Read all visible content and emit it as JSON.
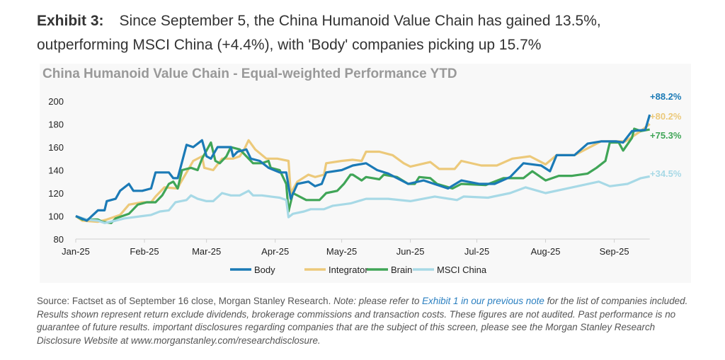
{
  "header": {
    "label": "Exhibit 3:",
    "line1": "Since September 5, the China Humanoid Value Chain has gained 13.5%,",
    "line2": "outperforming MSCI China (+4.4%), with 'Body' companies picking up 15.7%"
  },
  "chart_data": {
    "type": "line",
    "title": "China Humanoid Value Chain - Equal-weighted Performance YTD",
    "xlabel": "",
    "ylabel": "",
    "x_unit": "days since Jan 1 2025",
    "ylim": [
      80,
      200
    ],
    "yticks": [
      80,
      100,
      120,
      140,
      160,
      180,
      200
    ],
    "xticks": [
      {
        "label": "Jan-25",
        "day": 0
      },
      {
        "label": "Feb-25",
        "day": 31
      },
      {
        "label": "Mar-25",
        "day": 59
      },
      {
        "label": "Apr-25",
        "day": 90
      },
      {
        "label": "May-25",
        "day": 120
      },
      {
        "label": "Jun-25",
        "day": 151
      },
      {
        "label": "Jul-25",
        "day": 181
      },
      {
        "label": "Aug-25",
        "day": 212
      },
      {
        "label": "Sep-25",
        "day": 243
      }
    ],
    "xlim": [
      0,
      259
    ],
    "legend_position": "bottom",
    "series": [
      {
        "name": "Body",
        "color": "#1b7ab6",
        "end_label": "+88.2%",
        "points": [
          [
            0,
            100
          ],
          [
            5,
            96
          ],
          [
            10,
            105
          ],
          [
            13,
            105
          ],
          [
            14,
            113
          ],
          [
            18,
            115
          ],
          [
            20,
            122
          ],
          [
            24,
            128
          ],
          [
            26,
            122
          ],
          [
            30,
            122
          ],
          [
            34,
            124
          ],
          [
            36,
            138
          ],
          [
            42,
            138
          ],
          [
            44,
            133
          ],
          [
            46,
            133
          ],
          [
            50,
            162
          ],
          [
            53,
            160
          ],
          [
            57,
            166
          ],
          [
            59,
            152
          ],
          [
            61,
            150
          ],
          [
            64,
            160
          ],
          [
            70,
            160
          ],
          [
            71,
            152
          ],
          [
            73,
            156
          ],
          [
            77,
            158
          ],
          [
            79,
            150
          ],
          [
            83,
            148
          ],
          [
            87,
            142
          ],
          [
            92,
            138
          ],
          [
            95,
            138
          ],
          [
            97,
            115
          ],
          [
            100,
            128
          ],
          [
            105,
            130
          ],
          [
            108,
            126
          ],
          [
            111,
            128
          ],
          [
            113,
            138
          ],
          [
            120,
            140
          ],
          [
            125,
            144
          ],
          [
            131,
            146
          ],
          [
            136,
            140
          ],
          [
            141,
            137
          ],
          [
            150,
            128
          ],
          [
            157,
            131
          ],
          [
            168,
            124
          ],
          [
            174,
            131
          ],
          [
            182,
            128
          ],
          [
            189,
            128
          ],
          [
            196,
            134
          ],
          [
            202,
            146
          ],
          [
            210,
            144
          ],
          [
            214,
            139
          ],
          [
            217,
            153
          ],
          [
            225,
            153
          ],
          [
            231,
            163
          ],
          [
            237,
            165
          ],
          [
            244,
            165
          ],
          [
            247,
            164
          ],
          [
            251,
            174
          ],
          [
            257,
            175
          ],
          [
            259,
            188.2
          ]
        ]
      },
      {
        "name": "Integrator",
        "color": "#ecc97a",
        "end_label": "+80.2%",
        "points": [
          [
            0,
            100
          ],
          [
            3,
            96
          ],
          [
            10,
            95
          ],
          [
            14,
            97
          ],
          [
            20,
            101
          ],
          [
            24,
            110
          ],
          [
            30,
            112
          ],
          [
            34,
            112
          ],
          [
            36,
            117
          ],
          [
            40,
            125
          ],
          [
            46,
            124
          ],
          [
            47,
            128
          ],
          [
            50,
            138
          ],
          [
            53,
            148
          ],
          [
            57,
            152
          ],
          [
            58,
            142
          ],
          [
            62,
            140
          ],
          [
            66,
            150
          ],
          [
            71,
            150
          ],
          [
            74,
            152
          ],
          [
            76,
            158
          ],
          [
            78,
            166
          ],
          [
            81,
            158
          ],
          [
            86,
            150
          ],
          [
            91,
            150
          ],
          [
            96,
            148
          ],
          [
            97,
            120
          ],
          [
            100,
            130
          ],
          [
            105,
            136
          ],
          [
            108,
            134
          ],
          [
            112,
            136
          ],
          [
            113,
            146
          ],
          [
            120,
            148
          ],
          [
            125,
            149
          ],
          [
            129,
            148
          ],
          [
            131,
            156
          ],
          [
            137,
            156
          ],
          [
            143,
            153
          ],
          [
            148,
            146
          ],
          [
            151,
            143
          ],
          [
            160,
            147
          ],
          [
            164,
            141
          ],
          [
            171,
            141
          ],
          [
            174,
            148
          ],
          [
            183,
            144
          ],
          [
            190,
            144
          ],
          [
            197,
            150
          ],
          [
            205,
            152
          ],
          [
            212,
            145
          ],
          [
            217,
            153
          ],
          [
            225,
            153
          ],
          [
            237,
            165
          ],
          [
            248,
            165
          ],
          [
            255,
            174
          ],
          [
            259,
            180.2
          ]
        ]
      },
      {
        "name": "Brain",
        "color": "#40a557",
        "end_label": "+75.3%",
        "points": [
          [
            0,
            100
          ],
          [
            3,
            97
          ],
          [
            10,
            97
          ],
          [
            12,
            95
          ],
          [
            16,
            94
          ],
          [
            18,
            98
          ],
          [
            24,
            102
          ],
          [
            28,
            110
          ],
          [
            32,
            112
          ],
          [
            36,
            112
          ],
          [
            39,
            118
          ],
          [
            42,
            128
          ],
          [
            44,
            130
          ],
          [
            46,
            124
          ],
          [
            48,
            140
          ],
          [
            52,
            142
          ],
          [
            55,
            140
          ],
          [
            57,
            150
          ],
          [
            61,
            164
          ],
          [
            63,
            148
          ],
          [
            65,
            146
          ],
          [
            68,
            152
          ],
          [
            70,
            160
          ],
          [
            74,
            158
          ],
          [
            77,
            152
          ],
          [
            80,
            146
          ],
          [
            84,
            146
          ],
          [
            87,
            148
          ],
          [
            88,
            142
          ],
          [
            92,
            140
          ],
          [
            95,
            128
          ],
          [
            96,
            104
          ],
          [
            98,
            120
          ],
          [
            104,
            114
          ],
          [
            110,
            114
          ],
          [
            113,
            120
          ],
          [
            118,
            122
          ],
          [
            121,
            128
          ],
          [
            124,
            136
          ],
          [
            125,
            136
          ],
          [
            129,
            131
          ],
          [
            131,
            134
          ],
          [
            137,
            132
          ],
          [
            139,
            136
          ],
          [
            145,
            134
          ],
          [
            150,
            128
          ],
          [
            153,
            128
          ],
          [
            155,
            134
          ],
          [
            160,
            133
          ],
          [
            163,
            128
          ],
          [
            170,
            124
          ],
          [
            174,
            128
          ],
          [
            185,
            127
          ],
          [
            193,
            133
          ],
          [
            202,
            133
          ],
          [
            206,
            139
          ],
          [
            212,
            131
          ],
          [
            218,
            135
          ],
          [
            224,
            135
          ],
          [
            231,
            137
          ],
          [
            235,
            142
          ],
          [
            239,
            148
          ],
          [
            241,
            164
          ],
          [
            245,
            164
          ],
          [
            247,
            157
          ],
          [
            251,
            168
          ],
          [
            252,
            176
          ],
          [
            255,
            174
          ],
          [
            259,
            175.3
          ]
        ]
      },
      {
        "name": "MSCI China",
        "color": "#a7d9e6",
        "end_label": "+34.5%",
        "points": [
          [
            0,
            100
          ],
          [
            5,
            97
          ],
          [
            10,
            96
          ],
          [
            13,
            94
          ],
          [
            18,
            96
          ],
          [
            22,
            98
          ],
          [
            30,
            100
          ],
          [
            34,
            101
          ],
          [
            38,
            104
          ],
          [
            42,
            105
          ],
          [
            45,
            112
          ],
          [
            50,
            114
          ],
          [
            52,
            118
          ],
          [
            55,
            115
          ],
          [
            59,
            113
          ],
          [
            62,
            113
          ],
          [
            66,
            120
          ],
          [
            70,
            118
          ],
          [
            74,
            118
          ],
          [
            78,
            122
          ],
          [
            80,
            118
          ],
          [
            84,
            118
          ],
          [
            88,
            117
          ],
          [
            92,
            116
          ],
          [
            95,
            114
          ],
          [
            96,
            99
          ],
          [
            98,
            102
          ],
          [
            103,
            104
          ],
          [
            106,
            106
          ],
          [
            112,
            106
          ],
          [
            116,
            109
          ],
          [
            124,
            111
          ],
          [
            131,
            115
          ],
          [
            141,
            115
          ],
          [
            151,
            113
          ],
          [
            162,
            117
          ],
          [
            172,
            114
          ],
          [
            175,
            117
          ],
          [
            186,
            116
          ],
          [
            196,
            120
          ],
          [
            203,
            125
          ],
          [
            212,
            120
          ],
          [
            224,
            125
          ],
          [
            236,
            130
          ],
          [
            241,
            126
          ],
          [
            249,
            128
          ],
          [
            255,
            133
          ],
          [
            259,
            134.5
          ]
        ]
      }
    ]
  },
  "footer": {
    "source": "Source: Factset as of September 16 close, Morgan Stanley Research.",
    "note_pre": "Note: please refer to",
    "link": "Exhibit 1 in our previous note",
    "note_post": "for the list of companies included. Results shown represent return exclude dividends, brokerage commissions and transaction costs. These figures are not audited. Past performance is no guarantee of future results. important disclosures regarding companies that are the subject of this screen, please see the Morgan Stanley Research Disclosure Website at www.morganstanley.com/researchdisclosure."
  }
}
